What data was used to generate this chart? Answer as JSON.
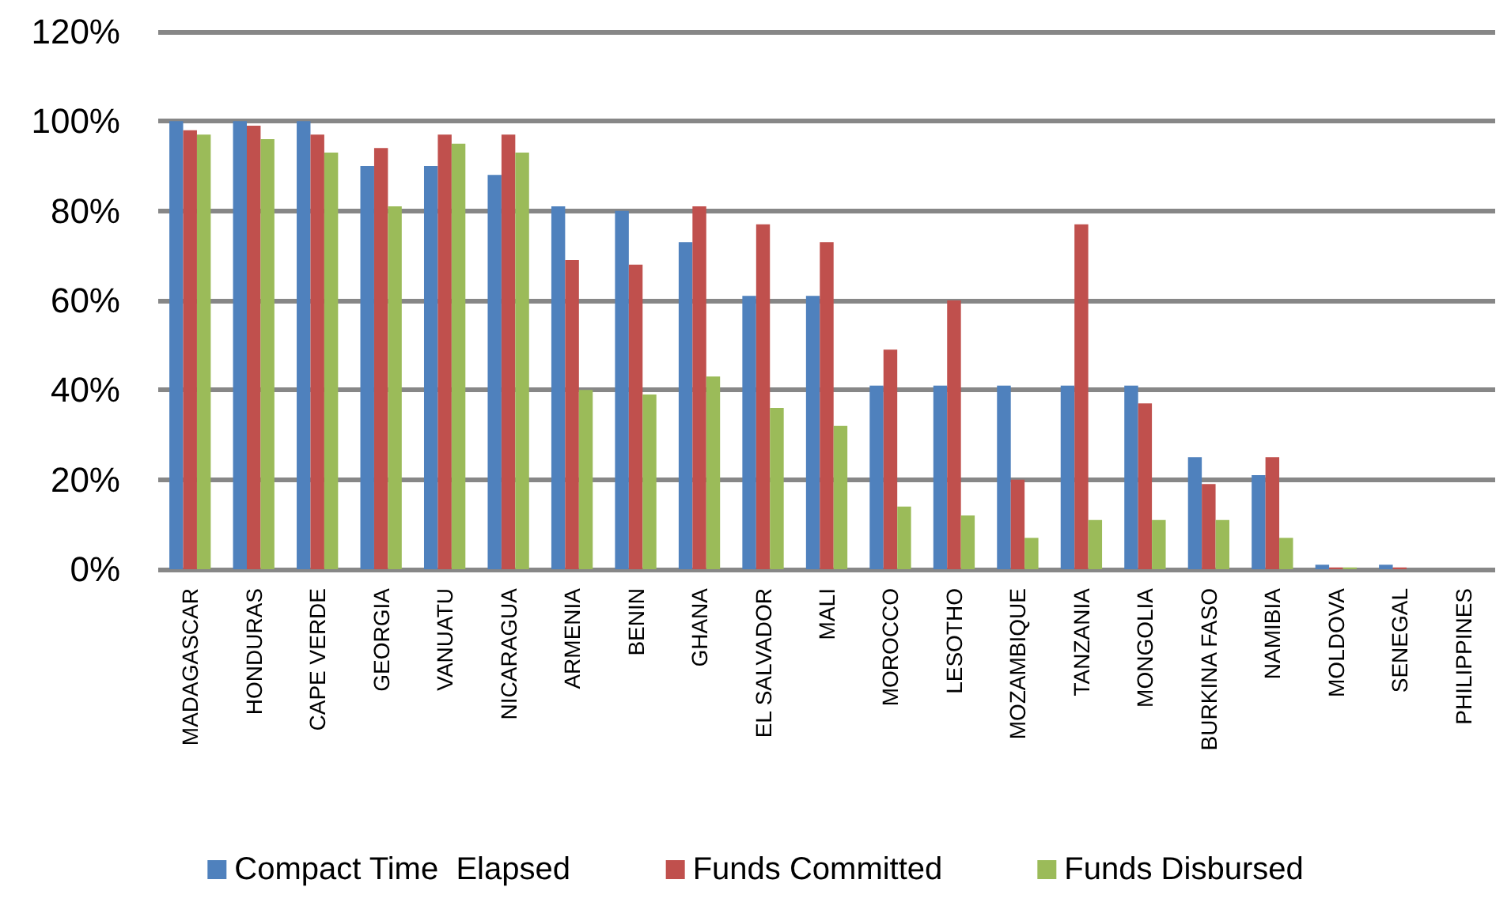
{
  "chart_data": {
    "type": "bar",
    "categories": [
      "MADAGASCAR",
      "HONDURAS",
      "CAPE VERDE",
      "GEORGIA",
      "VANUATU",
      "NICARAGUA",
      "ARMENIA",
      "BENIN",
      "GHANA",
      "EL SALVADOR",
      "MALI",
      "MOROCCO",
      "LESOTHO",
      "MOZAMBIQUE",
      "TANZANIA",
      "MONGOLIA",
      "BURKINA FASO",
      "NAMIBIA",
      "MOLDOVA",
      "SENEGAL",
      "PHILIPPINES"
    ],
    "series": [
      {
        "name": "Compact Time  Elapsed",
        "color": "#4f81bd",
        "values": [
          100,
          100,
          100,
          90,
          90,
          88,
          81,
          80,
          73,
          61,
          61,
          41,
          41,
          41,
          41,
          41,
          25,
          21,
          1,
          1,
          0
        ]
      },
      {
        "name": "Funds Committed",
        "color": "#c0504d",
        "values": [
          98,
          99,
          97,
          94,
          97,
          97,
          69,
          68,
          81,
          77,
          73,
          49,
          60,
          20,
          77,
          37,
          19,
          25,
          0.4,
          0.4,
          0
        ]
      },
      {
        "name": "Funds Disbursed",
        "color": "#9bbb59",
        "values": [
          97,
          96,
          93,
          81,
          95,
          93,
          40,
          39,
          43,
          36,
          32,
          14,
          12,
          7,
          11,
          11,
          11,
          7,
          0.4,
          0,
          0
        ]
      }
    ],
    "ylim": [
      0,
      120
    ],
    "yticks": [
      {
        "value": 0,
        "label": "0%"
      },
      {
        "value": 20,
        "label": "20%"
      },
      {
        "value": 40,
        "label": "40%"
      },
      {
        "value": 60,
        "label": "60%"
      },
      {
        "value": 80,
        "label": "80%"
      },
      {
        "value": 100,
        "label": "100%"
      },
      {
        "value": 120,
        "label": "120%"
      }
    ],
    "grid": "y",
    "legend": "bottom"
  }
}
